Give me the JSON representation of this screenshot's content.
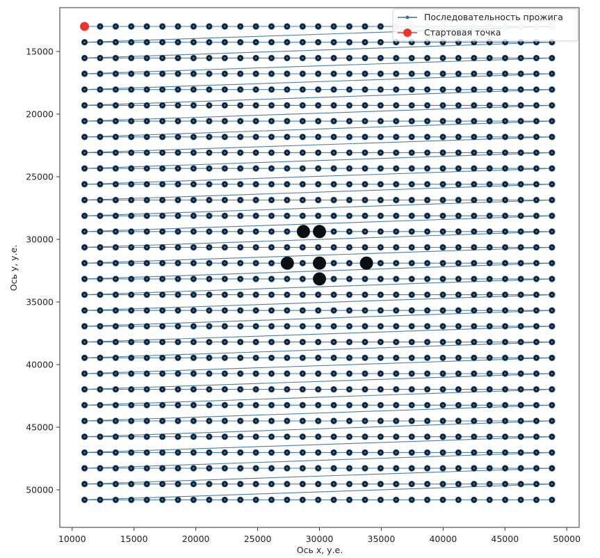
{
  "chart_data": {
    "type": "scatter",
    "title": "",
    "xlabel": "Ось x, у.е.",
    "ylabel": "Ось y, у.е.",
    "xlim": [
      9000,
      51000
    ],
    "ylim": [
      53000,
      11500
    ],
    "y_inverted": true,
    "x_ticks": [
      10000,
      15000,
      20000,
      25000,
      30000,
      35000,
      40000,
      45000,
      50000
    ],
    "y_ticks": [
      15000,
      20000,
      25000,
      30000,
      35000,
      40000,
      45000,
      50000
    ],
    "grid": false,
    "legend_position": "top-right",
    "grid_points": {
      "x_start": 11000,
      "x_step": 1260,
      "x_count": 31,
      "y_start": 13000,
      "y_step": 1260,
      "y_count": 31
    },
    "series": [
      {
        "name": "Последовательность прожига",
        "kind": "line",
        "color": "#3b6e99",
        "path": "raster rows left-to-right, each row end connected back to start of next row"
      },
      {
        "name": "Стартовая точка",
        "kind": "marker",
        "color": "#e8382c",
        "points": [
          [
            11000,
            13000
          ]
        ]
      }
    ],
    "highlight_points": [
      [
        28700,
        29380
      ],
      [
        30000,
        29380
      ],
      [
        27400,
        31900
      ],
      [
        30000,
        31900
      ],
      [
        33800,
        31900
      ],
      [
        30000,
        33160
      ]
    ],
    "colors": {
      "marker_fill": "#0b1b2b",
      "path_line": "#3b6e99",
      "start_marker": "#e8382c",
      "faded_marker": "#c8d3dd"
    }
  }
}
